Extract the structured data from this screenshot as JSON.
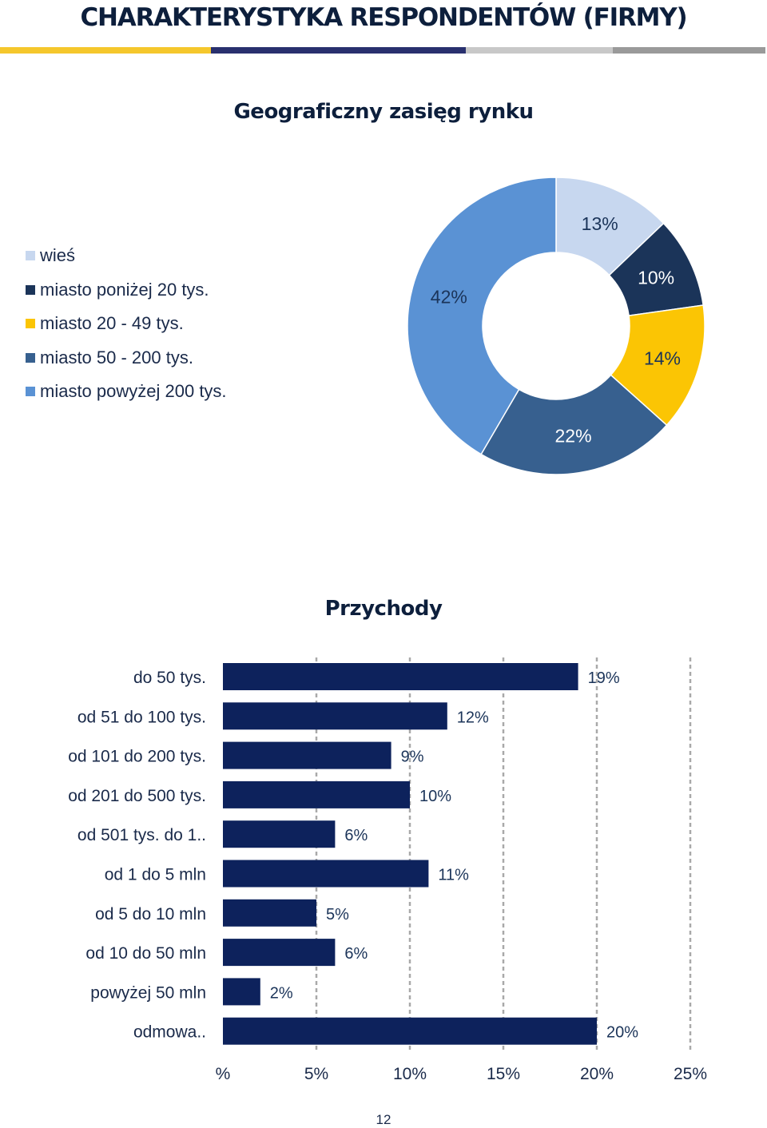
{
  "header": {
    "title": "CHARAKTERYSTYKA RESPONDENTÓW (FIRMY)",
    "stripe_colors": [
      "#f5c72c",
      "#29306e",
      "#c8c8c8",
      "#9a9a9a"
    ]
  },
  "chart_data": [
    {
      "type": "pie",
      "variant": "donut",
      "title": "Geograficzny zasięg rynku",
      "categories": [
        "wieś",
        "miasto poniżej 20 tys.",
        "miasto 20 - 49 tys.",
        "miasto 50 - 200 tys.",
        "miasto powyżej 200 tys."
      ],
      "values": [
        13,
        10,
        14,
        22,
        42
      ],
      "labels": [
        "13%",
        "10%",
        "14%",
        "22%",
        "42%"
      ],
      "colors": [
        "#c7d7ef",
        "#1b3459",
        "#fbc504",
        "#37608f",
        "#5a92d4"
      ],
      "label_colors": [
        "#1b3459",
        "#ffffff",
        "#1b3459",
        "#ffffff",
        "#1b3459"
      ],
      "legend_position": "left"
    },
    {
      "type": "bar",
      "orientation": "horizontal",
      "title": "Przychody",
      "categories": [
        "do 50 tys.",
        "od 51 do 100 tys.",
        "od 101 do 200 tys.",
        "od 201 do 500 tys.",
        "od 501 tys. do 1..",
        "od 1 do 5 mln",
        "od 5 do 10 mln",
        "od 10 do 50 mln",
        "powyżej 50 mln",
        "odmowa.."
      ],
      "values": [
        19,
        12,
        9,
        10,
        6,
        11,
        5,
        6,
        2,
        20
      ],
      "value_labels": [
        "19%",
        "12%",
        "9%",
        "10%",
        "6%",
        "11%",
        "5%",
        "6%",
        "2%",
        "20%"
      ],
      "xlim": [
        0,
        25
      ],
      "xticks": [
        0,
        5,
        10,
        15,
        20,
        25
      ],
      "xtick_labels": [
        "%",
        "5%",
        "10%",
        "15%",
        "20%",
        "25%"
      ],
      "bar_color": "#0d225c",
      "grid": true
    }
  ],
  "footer": {
    "page_number": "12"
  }
}
